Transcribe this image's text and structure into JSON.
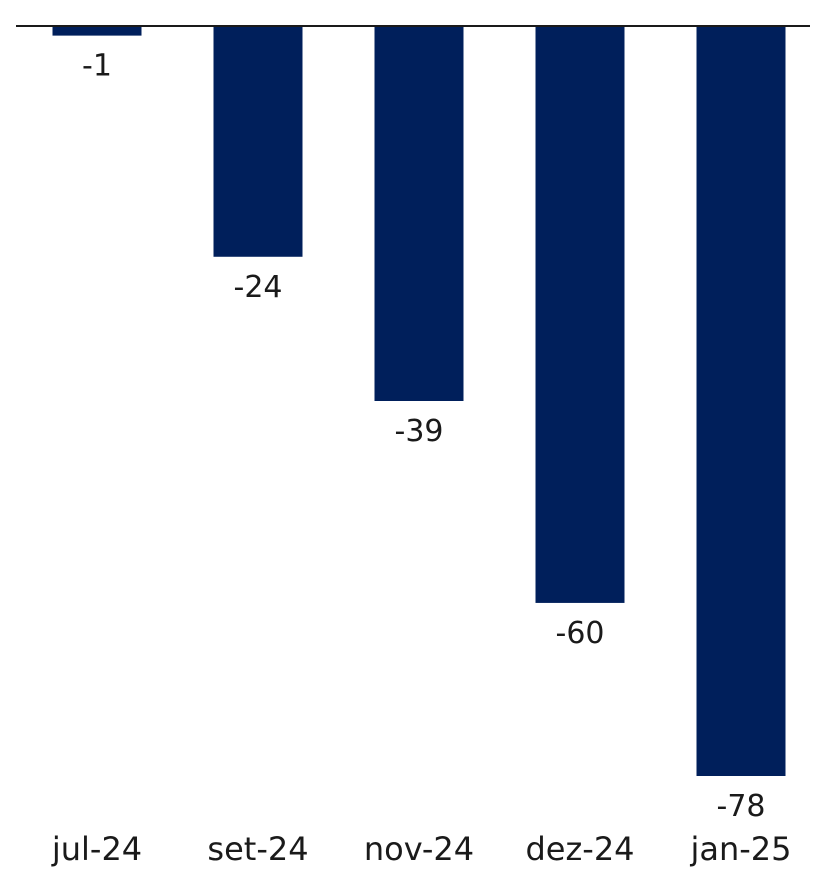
{
  "chart_data": {
    "type": "bar",
    "categories": [
      "jul-24",
      "set-24",
      "nov-24",
      "dez-24",
      "jan-25"
    ],
    "values": [
      -1,
      -24,
      -39,
      -60,
      -78
    ],
    "data_labels": [
      "-1",
      "-24",
      "-39",
      "-60",
      "-78"
    ],
    "ylim": [
      -78,
      0
    ],
    "grid": false,
    "legend": "none",
    "colors": {
      "bar": "#001f5b",
      "axis": "#1a1a1a",
      "text": "#1a1a1a"
    }
  }
}
